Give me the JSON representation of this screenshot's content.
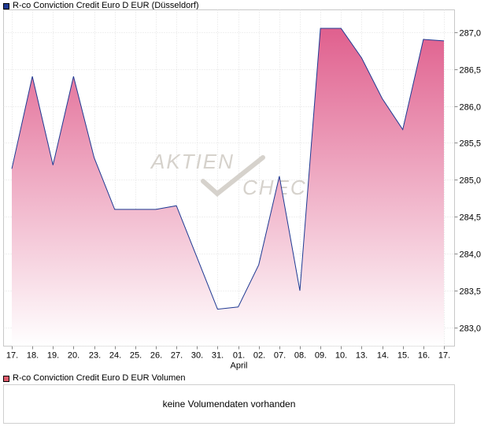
{
  "legend_price": {
    "label": "R-co Conviction Credit Euro D EUR (Düsseldorf)",
    "color": "#1f3a93"
  },
  "legend_volume": {
    "label": "R-co Conviction Credit Euro D EUR Volumen",
    "color": "#e05c6c"
  },
  "volume_message": "keine Volumendaten vorhanden",
  "watermark": {
    "line1": "AKTIEN",
    "line2": "CHECK"
  },
  "chart_data": {
    "type": "area",
    "x": [
      "17.",
      "18.",
      "19.",
      "20.",
      "23.",
      "24.",
      "25.",
      "26.",
      "27.",
      "30.",
      "31.",
      "01.",
      "02.",
      "07.",
      "08.",
      "09.",
      "10.",
      "13.",
      "14.",
      "15.",
      "16.",
      "17."
    ],
    "x_sublabels": {
      "11": "April"
    },
    "values": [
      285.15,
      286.4,
      285.2,
      286.4,
      285.3,
      284.6,
      284.6,
      284.6,
      284.65,
      283.95,
      283.25,
      283.28,
      283.85,
      285.05,
      283.5,
      287.05,
      287.05,
      286.65,
      286.1,
      285.68,
      286.9,
      286.88
    ],
    "y_ticks": [
      "283,0",
      "283,5",
      "284,0",
      "284,5",
      "285,0",
      "285,5",
      "286,0",
      "286,5",
      "287,0"
    ],
    "ylim": [
      282.75,
      287.3
    ],
    "grid": true,
    "line_color": "#1f3a93",
    "fill_top": "#e0608e",
    "fill_bottom": "#ffffff"
  }
}
